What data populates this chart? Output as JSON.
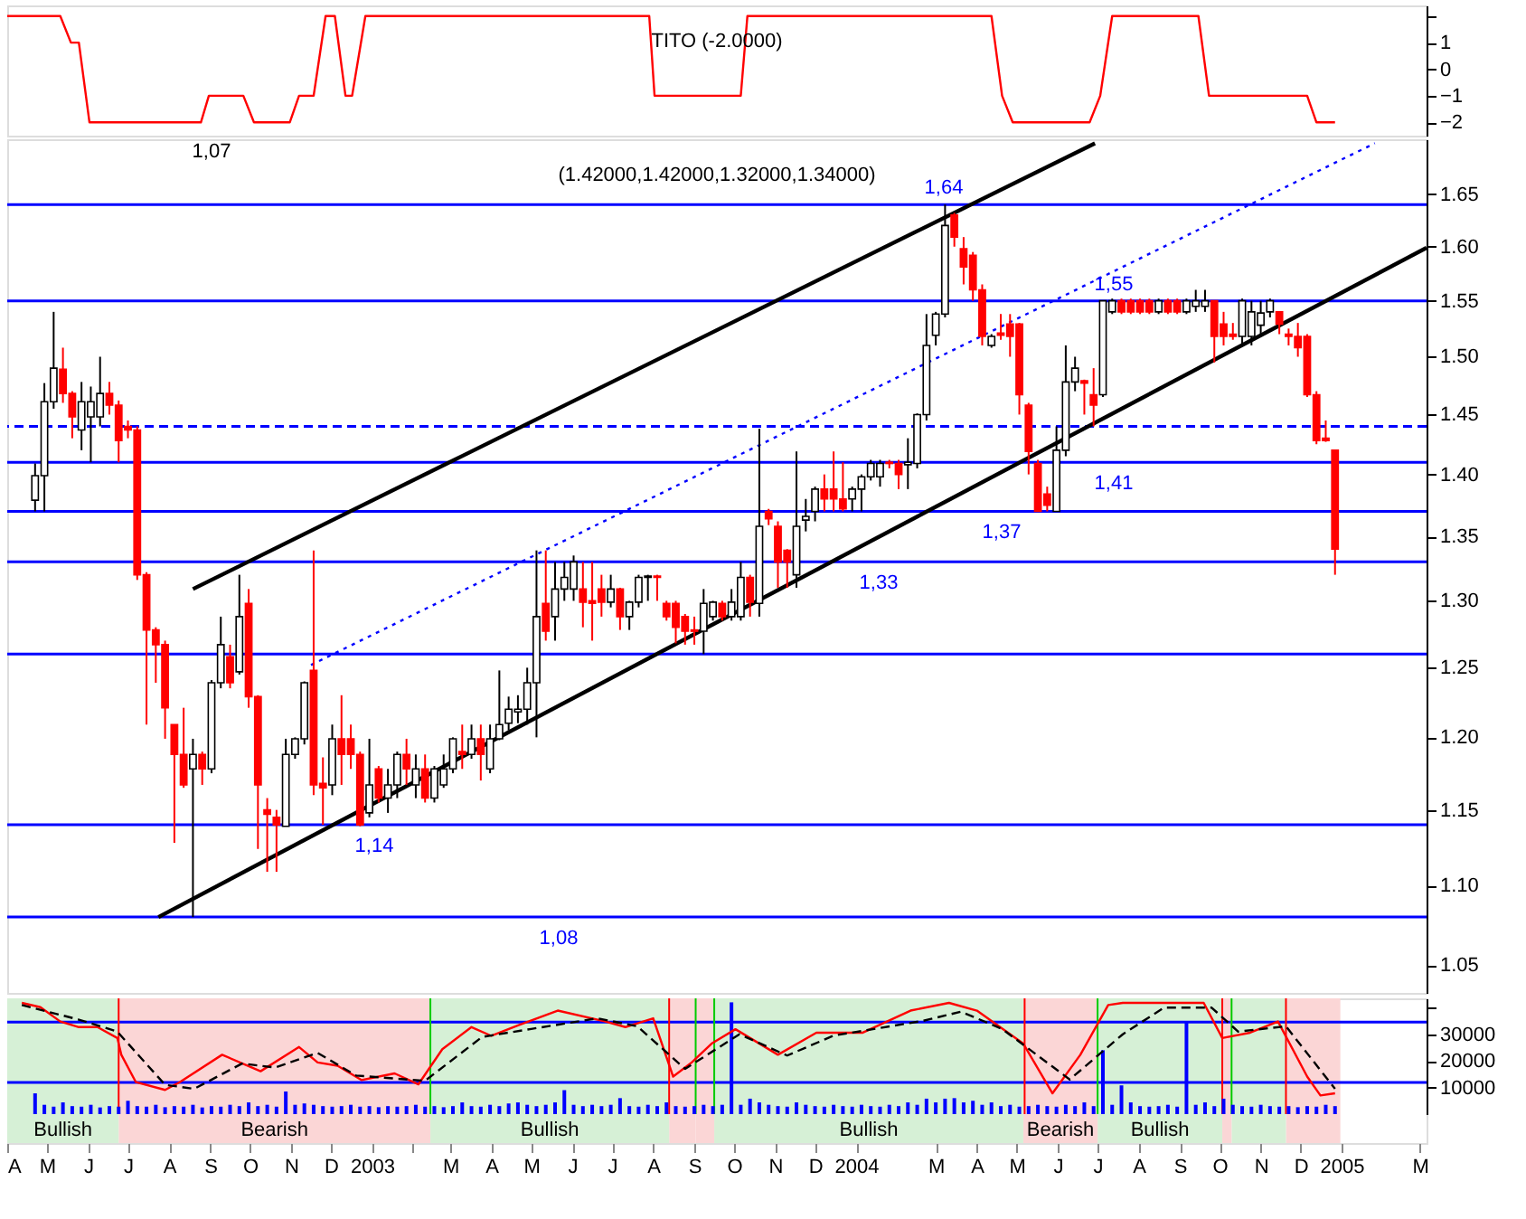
{
  "chart_data": [
    {
      "type": "line",
      "title": "TITO (-2.0000)",
      "series": [
        {
          "color": "#ff0000",
          "x": [
            "2002-04-01",
            "2002-05-11",
            "2002-05-19",
            "2002-05-25",
            "2002-06-02",
            "2002-08-25",
            "2002-08-31",
            "2002-09-26",
            "2002-10-04",
            "2002-10-31",
            "2002-11-07",
            "2002-11-18",
            "2002-11-27",
            "2002-12-04",
            "2002-12-12",
            "2002-12-17",
            "2002-12-27",
            "2003-07-29",
            "2003-08-02",
            "2003-10-06",
            "2003-10-11",
            "2004-04-12",
            "2004-04-20",
            "2004-04-28",
            "2004-06-25",
            "2004-07-03",
            "2004-07-12",
            "2004-09-15",
            "2004-09-23",
            "2004-12-06",
            "2004-12-13",
            "2004-12-27"
          ],
          "values": [
            2,
            2,
            1,
            1,
            -2,
            -2,
            -1,
            -1,
            -2,
            -2,
            -1,
            -1,
            2,
            2,
            -1,
            -1,
            2,
            2,
            -1,
            -1,
            2,
            2,
            -1,
            -2,
            -2,
            -1,
            2,
            2,
            -1,
            -1,
            -2,
            -2
          ]
        }
      ],
      "xlim": [
        "2002-04-01",
        "2005-03-06"
      ],
      "ylim": [
        -2.5,
        2.4
      ],
      "yticks": [
        {
          "value": 2,
          "label": null
        },
        1,
        0,
        -1,
        -2
      ],
      "tick_labels": "y"
    },
    {
      "type": "candlestick",
      "title": "(1.42000,1.42000,1.32000,1.34000)",
      "colors": [
        "#ffffff",
        "#ffffff",
        "#ffffff",
        "#ff0000",
        "#ff0000",
        "#ffffff",
        "#ffffff",
        "#ffffff",
        "#ff0000",
        "#ff0000",
        "#ff0000",
        "#ff0000",
        "#ff0000",
        "#ff0000",
        "#ff0000",
        "#ff0000",
        "#ff0000",
        "#ffffff",
        "#ff0000",
        "#ffffff",
        "#ffffff",
        "#ff0000",
        "#ffffff",
        "#ff0000",
        "#ff0000",
        "#ff0000",
        "#ff0000",
        "#ffffff",
        "#ffffff",
        "#ffffff",
        "#ff0000",
        "#ff0000",
        "#ffffff",
        "#ff0000",
        "#ff0000",
        "#ff0000",
        "#ffffff",
        "#ff0000",
        "#ffffff",
        "#ffffff",
        "#ff0000",
        "#ffffff",
        "#ff0000",
        "#ffffff",
        "#ffffff",
        "#ffffff",
        "#ff0000",
        "#ffffff",
        "#ff0000",
        "#ffffff",
        "#ffffff",
        "#ffffff",
        "#ffffff",
        "#ffffff",
        "#ffffff",
        "#ff0000",
        "#ffffff",
        "#ffffff",
        "#ffffff",
        "#ff0000",
        "#ff0000",
        "#ff0000",
        "#ffffff",
        "#ff0000",
        "#ffffff",
        "#ffffff",
        "#ffffff",
        "#ff0000",
        "#ff0000",
        "#ff0000",
        "#ff0000",
        "#ff0000",
        "#ffffff",
        "#ffffff",
        "#ff0000",
        "#ffffff",
        "#ffffff",
        "#ff0000",
        "#ffffff",
        "#ff0000",
        "#ff0000",
        "#ff0000",
        "#ffffff",
        "#ffffff",
        "#ffffff",
        "#ff0000",
        "#ff0000",
        "#ff0000",
        "#ffffff",
        "#ffffff",
        "#ffffff",
        "#ffffff",
        "#ff0000",
        "#ff0000",
        "#ffffff",
        "#ffffff",
        "#ffffff",
        "#ffffff",
        "#ffffff",
        "#ff0000",
        "#ff0000",
        "#ff0000",
        "#ff0000",
        "#ffffff",
        "#ff0000",
        "#ff0000",
        "#ff0000",
        "#ff0000",
        "#ff0000",
        "#ff0000",
        "#ffffff",
        "#ffffff",
        "#ffffff",
        "#ff0000",
        "#ff0000",
        "#ffffff",
        "#ffffff",
        "#ff0000",
        "#ff0000",
        "#ff0000",
        "#ff0000",
        "#ffffff",
        "#ff0000",
        "#ff0000",
        "#ffffff",
        "#ffffff",
        "#ffffff",
        "#ff0000",
        "#ff0000",
        "#ff0000",
        "#ffffff",
        "#ffffff",
        "#ffffff",
        "#ffffff",
        "#ff0000",
        "#ff0000",
        "#ff0000",
        "#ff0000",
        "#ff0000",
        "#ff0000",
        "#ff0000"
      ],
      "x": [
        "2002-04-22",
        "2002-04-29",
        "2002-05-06",
        "2002-05-13",
        "2002-05-20",
        "2002-05-27",
        "2002-06-03",
        "2002-06-10",
        "2002-06-17",
        "2002-06-24",
        "2002-07-01",
        "2002-07-08",
        "2002-07-15",
        "2002-07-22",
        "2002-07-29",
        "2002-08-05",
        "2002-08-12",
        "2002-08-19",
        "2002-08-26",
        "2002-09-02",
        "2002-09-09",
        "2002-09-16",
        "2002-09-23",
        "2002-09-30",
        "2002-10-07",
        "2002-10-14",
        "2002-10-21",
        "2002-10-28",
        "2002-11-04",
        "2002-11-11",
        "2002-11-18",
        "2002-11-25",
        "2002-12-02",
        "2002-12-09",
        "2002-12-16",
        "2002-12-23",
        "2002-12-30",
        "2003-01-06",
        "2003-01-13",
        "2003-01-20",
        "2003-01-27",
        "2003-02-03",
        "2003-02-10",
        "2003-02-17",
        "2003-02-24",
        "2003-03-03",
        "2003-03-10",
        "2003-03-17",
        "2003-03-24",
        "2003-03-31",
        "2003-04-07",
        "2003-04-14",
        "2003-04-21",
        "2003-04-28",
        "2003-05-05",
        "2003-05-12",
        "2003-05-19",
        "2003-05-26",
        "2003-06-02",
        "2003-06-09",
        "2003-06-16",
        "2003-06-23",
        "2003-06-30",
        "2003-07-07",
        "2003-07-14",
        "2003-07-21",
        "2003-07-28",
        "2003-08-04",
        "2003-08-11",
        "2003-08-18",
        "2003-08-25",
        "2003-09-01",
        "2003-09-08",
        "2003-09-15",
        "2003-09-22",
        "2003-09-29",
        "2003-10-06",
        "2003-10-13",
        "2003-10-20",
        "2003-10-27",
        "2003-11-03",
        "2003-11-10",
        "2003-11-17",
        "2003-11-24",
        "2003-12-01",
        "2003-12-08",
        "2003-12-15",
        "2003-12-22",
        "2003-12-29",
        "2004-01-05",
        "2004-01-12",
        "2004-01-19",
        "2004-01-26",
        "2004-02-02",
        "2004-02-09",
        "2004-02-16",
        "2004-02-23",
        "2004-03-01",
        "2004-03-08",
        "2004-03-15",
        "2004-03-22",
        "2004-03-29",
        "2004-04-05",
        "2004-04-12",
        "2004-04-19",
        "2004-04-26",
        "2004-05-03",
        "2004-05-10",
        "2004-05-17",
        "2004-05-24",
        "2004-05-31",
        "2004-06-07",
        "2004-06-14",
        "2004-06-21",
        "2004-06-28",
        "2004-07-05",
        "2004-07-12",
        "2004-07-19",
        "2004-07-26",
        "2004-08-02",
        "2004-08-09",
        "2004-08-16",
        "2004-08-23",
        "2004-08-30",
        "2004-09-06",
        "2004-09-13",
        "2004-09-20",
        "2004-09-27",
        "2004-10-04",
        "2004-10-11",
        "2004-10-18",
        "2004-10-25",
        "2004-11-01",
        "2004-11-08",
        "2004-11-15",
        "2004-11-22",
        "2004-11-29",
        "2004-12-06",
        "2004-12-13",
        "2004-12-20",
        "2004-12-27"
      ],
      "ohlc": [
        [
          1.379,
          1.409,
          1.37,
          1.399
        ],
        [
          1.399,
          1.477,
          1.37,
          1.461
        ],
        [
          1.461,
          1.54,
          1.455,
          1.49
        ],
        [
          1.489,
          1.508,
          1.46,
          1.468
        ],
        [
          1.468,
          1.47,
          1.43,
          1.448
        ],
        [
          1.437,
          1.478,
          1.42,
          1.461
        ],
        [
          1.448,
          1.474,
          1.41,
          1.461
        ],
        [
          1.448,
          1.5,
          1.44,
          1.468
        ],
        [
          1.468,
          1.478,
          1.45,
          1.458
        ],
        [
          1.458,
          1.462,
          1.41,
          1.428
        ],
        [
          1.44,
          1.445,
          1.43,
          1.437
        ],
        [
          1.437,
          1.44,
          1.316,
          1.32
        ],
        [
          1.32,
          1.322,
          1.209,
          1.278
        ],
        [
          1.278,
          1.28,
          1.239,
          1.267
        ],
        [
          1.267,
          1.27,
          1.199,
          1.221
        ],
        [
          1.209,
          1.209,
          1.128,
          1.188
        ],
        [
          1.188,
          1.221,
          1.165,
          1.167
        ],
        [
          1.178,
          1.199,
          1.08,
          1.188
        ],
        [
          1.188,
          1.19,
          1.167,
          1.178
        ],
        [
          1.178,
          1.241,
          1.175,
          1.239
        ],
        [
          1.239,
          1.288,
          1.235,
          1.267
        ],
        [
          1.258,
          1.267,
          1.235,
          1.239
        ],
        [
          1.247,
          1.32,
          1.245,
          1.288
        ],
        [
          1.298,
          1.309,
          1.221,
          1.229
        ],
        [
          1.229,
          1.23,
          1.124,
          1.167
        ],
        [
          1.15,
          1.158,
          1.109,
          1.147
        ],
        [
          1.145,
          1.15,
          1.109,
          1.14
        ],
        [
          1.139,
          1.199,
          1.139,
          1.188
        ],
        [
          1.188,
          1.2,
          1.185,
          1.199
        ],
        [
          1.199,
          1.24,
          1.195,
          1.239
        ],
        [
          1.248,
          1.339,
          1.16,
          1.167
        ],
        [
          1.168,
          1.186,
          1.14,
          1.165
        ],
        [
          1.167,
          1.209,
          1.16,
          1.199
        ],
        [
          1.199,
          1.23,
          1.167,
          1.188
        ],
        [
          1.199,
          1.209,
          1.178,
          1.188
        ],
        [
          1.188,
          1.19,
          1.139,
          1.14
        ],
        [
          1.148,
          1.199,
          1.145,
          1.167
        ],
        [
          1.178,
          1.18,
          1.155,
          1.158
        ],
        [
          1.158,
          1.178,
          1.148,
          1.167
        ],
        [
          1.167,
          1.19,
          1.158,
          1.188
        ],
        [
          1.188,
          1.199,
          1.167,
          1.178
        ],
        [
          1.167,
          1.188,
          1.158,
          1.178
        ],
        [
          1.178,
          1.188,
          1.155,
          1.158
        ],
        [
          1.158,
          1.18,
          1.155,
          1.178
        ],
        [
          1.167,
          1.188,
          1.165,
          1.178
        ],
        [
          1.178,
          1.2,
          1.175,
          1.199
        ],
        [
          1.19,
          1.209,
          1.178,
          1.188
        ],
        [
          1.188,
          1.209,
          1.185,
          1.199
        ],
        [
          1.199,
          1.209,
          1.17,
          1.188
        ],
        [
          1.178,
          1.209,
          1.175,
          1.199
        ],
        [
          1.199,
          1.248,
          1.198,
          1.209
        ],
        [
          1.21,
          1.229,
          1.205,
          1.22
        ],
        [
          1.218,
          1.23,
          1.21,
          1.22
        ],
        [
          1.22,
          1.25,
          1.209,
          1.239
        ],
        [
          1.239,
          1.339,
          1.2,
          1.288
        ],
        [
          1.298,
          1.339,
          1.27,
          1.277
        ],
        [
          1.288,
          1.33,
          1.27,
          1.309
        ],
        [
          1.309,
          1.33,
          1.3,
          1.318
        ],
        [
          1.309,
          1.335,
          1.3,
          1.33
        ],
        [
          1.309,
          1.33,
          1.28,
          1.299
        ],
        [
          1.3,
          1.33,
          1.27,
          1.298
        ],
        [
          1.309,
          1.32,
          1.288,
          1.299
        ],
        [
          1.299,
          1.32,
          1.295,
          1.309
        ],
        [
          1.309,
          1.31,
          1.278,
          1.288
        ],
        [
          1.288,
          1.3,
          1.278,
          1.299
        ],
        [
          1.299,
          1.32,
          1.295,
          1.318
        ],
        [
          1.318,
          1.32,
          1.3,
          1.319
        ],
        [
          1.319,
          1.32,
          1.3,
          1.318
        ],
        [
          1.298,
          1.3,
          1.285,
          1.288
        ],
        [
          1.298,
          1.3,
          1.268,
          1.28
        ],
        [
          1.288,
          1.29,
          1.267,
          1.277
        ],
        [
          1.278,
          1.288,
          1.267,
          1.277
        ],
        [
          1.277,
          1.309,
          1.26,
          1.298
        ],
        [
          1.288,
          1.3,
          1.285,
          1.299
        ],
        [
          1.298,
          1.3,
          1.285,
          1.288
        ],
        [
          1.288,
          1.309,
          1.285,
          1.299
        ],
        [
          1.288,
          1.33,
          1.285,
          1.318
        ],
        [
          1.318,
          1.32,
          1.288,
          1.299
        ],
        [
          1.298,
          1.438,
          1.288,
          1.358
        ],
        [
          1.37,
          1.372,
          1.359,
          1.364
        ],
        [
          1.358,
          1.362,
          1.31,
          1.33
        ],
        [
          1.339,
          1.34,
          1.31,
          1.33
        ],
        [
          1.32,
          1.419,
          1.31,
          1.358
        ],
        [
          1.363,
          1.38,
          1.354,
          1.366
        ],
        [
          1.37,
          1.39,
          1.362,
          1.388
        ],
        [
          1.388,
          1.4,
          1.37,
          1.38
        ],
        [
          1.388,
          1.419,
          1.37,
          1.38
        ],
        [
          1.38,
          1.41,
          1.37,
          1.372
        ],
        [
          1.38,
          1.39,
          1.37,
          1.388
        ],
        [
          1.388,
          1.4,
          1.37,
          1.398
        ],
        [
          1.398,
          1.412,
          1.395,
          1.409
        ],
        [
          1.398,
          1.412,
          1.39,
          1.409
        ],
        [
          1.41,
          1.412,
          1.405,
          1.409
        ],
        [
          1.409,
          1.412,
          1.388,
          1.4
        ],
        [
          1.408,
          1.43,
          1.388,
          1.41
        ],
        [
          1.409,
          1.451,
          1.405,
          1.45
        ],
        [
          1.45,
          1.538,
          1.445,
          1.51
        ],
        [
          1.519,
          1.54,
          1.51,
          1.538
        ],
        [
          1.538,
          1.64,
          1.535,
          1.62
        ],
        [
          1.63,
          1.632,
          1.6,
          1.609
        ],
        [
          1.598,
          1.609,
          1.565,
          1.581
        ],
        [
          1.592,
          1.595,
          1.55,
          1.56
        ],
        [
          1.56,
          1.565,
          1.51,
          1.518
        ],
        [
          1.51,
          1.52,
          1.508,
          1.518
        ],
        [
          1.521,
          1.538,
          1.515,
          1.519
        ],
        [
          1.529,
          1.538,
          1.5,
          1.518
        ],
        [
          1.529,
          1.53,
          1.45,
          1.467
        ],
        [
          1.458,
          1.46,
          1.4,
          1.419
        ],
        [
          1.409,
          1.412,
          1.37,
          1.37
        ],
        [
          1.384,
          1.39,
          1.37,
          1.375
        ],
        [
          1.37,
          1.44,
          1.37,
          1.42
        ],
        [
          1.42,
          1.51,
          1.415,
          1.478
        ],
        [
          1.478,
          1.5,
          1.47,
          1.49
        ],
        [
          1.479,
          1.48,
          1.45,
          1.477
        ],
        [
          1.467,
          1.49,
          1.44,
          1.458
        ],
        [
          1.467,
          1.55,
          1.465,
          1.55
        ],
        [
          1.54,
          1.552,
          1.538,
          1.55
        ],
        [
          1.55,
          1.552,
          1.538,
          1.54
        ],
        [
          1.55,
          1.552,
          1.538,
          1.54
        ],
        [
          1.55,
          1.552,
          1.538,
          1.54
        ],
        [
          1.55,
          1.552,
          1.538,
          1.54
        ],
        [
          1.54,
          1.552,
          1.538,
          1.55
        ],
        [
          1.55,
          1.552,
          1.538,
          1.54
        ],
        [
          1.55,
          1.552,
          1.538,
          1.54
        ],
        [
          1.54,
          1.552,
          1.538,
          1.55
        ],
        [
          1.545,
          1.56,
          1.54,
          1.55
        ],
        [
          1.545,
          1.56,
          1.54,
          1.55
        ],
        [
          1.55,
          1.55,
          1.495,
          1.518
        ],
        [
          1.529,
          1.54,
          1.51,
          1.518
        ],
        [
          1.52,
          1.53,
          1.515,
          1.518
        ],
        [
          1.518,
          1.552,
          1.51,
          1.55
        ],
        [
          1.518,
          1.55,
          1.51,
          1.54
        ],
        [
          1.528,
          1.55,
          1.52,
          1.539
        ],
        [
          1.54,
          1.552,
          1.535,
          1.55
        ],
        [
          1.54,
          1.54,
          1.52,
          1.529
        ],
        [
          1.52,
          1.525,
          1.51,
          1.518
        ],
        [
          1.518,
          1.53,
          1.5,
          1.508
        ],
        [
          1.518,
          1.52,
          1.465,
          1.467
        ],
        [
          1.467,
          1.47,
          1.425,
          1.428
        ],
        [
          1.43,
          1.445,
          1.427,
          1.428
        ],
        [
          1.42,
          1.42,
          1.32,
          1.34
        ]
      ],
      "series": [
        {
          "type": "line",
          "color": "#000000",
          "x": [
            "2002-08-19",
            "2004-06-29"
          ],
          "values": [
            1.309,
            1.7
          ]
        },
        {
          "type": "line",
          "color": "#000000",
          "x": [
            "2002-07-24",
            "2005-03-06"
          ],
          "values": [
            1.08,
            1.599
          ]
        },
        {
          "type": "line",
          "color": "#0000ff",
          "line_style": "dotted",
          "x": [
            "2002-11-16",
            "2005-01-26"
          ],
          "values": [
            1.252,
            1.7
          ]
        }
      ],
      "ref_lines": [
        {
          "axis": "y",
          "value": 1.64,
          "label": "1,64",
          "color": "#0000ff"
        },
        {
          "axis": "y",
          "value": 1.55,
          "label": "1,55",
          "color": "#0000ff"
        },
        {
          "axis": "y",
          "value": 1.44,
          "color": "#0000ff",
          "line_style": "dashed"
        },
        {
          "axis": "y",
          "value": 1.41,
          "label": "1,41",
          "color": "#0000ff"
        },
        {
          "axis": "y",
          "value": 1.37,
          "label": "1,37",
          "color": "#0000ff"
        },
        {
          "axis": "y",
          "value": 1.33,
          "label": "1,33",
          "color": "#0000ff"
        },
        {
          "axis": "y",
          "value": 1.26,
          "color": "#0000ff"
        },
        {
          "axis": "y",
          "value": 1.14,
          "label": "1,14",
          "color": "#0000ff"
        },
        {
          "axis": "y",
          "value": 1.08,
          "label": "1,08",
          "color": "#0000ff"
        }
      ],
      "annotations": [
        "1,07"
      ],
      "log": "y",
      "xlim": [
        "2002-04-01",
        "2005-03-06"
      ],
      "ylim": [
        1.033,
        1.704
      ],
      "yticks": [
        1.05,
        {
          "value": 1.1,
          "label": "1.10"
        },
        1.15,
        {
          "value": 1.2,
          "label": "1.20"
        },
        1.25,
        {
          "value": 1.3,
          "label": "1.30"
        },
        1.35,
        {
          "value": 1.4,
          "label": "1.40"
        },
        1.45,
        {
          "value": 1.5,
          "label": "1.50"
        },
        1.55,
        {
          "value": 1.6,
          "label": "1.60"
        },
        1.65
      ],
      "tick_labels": "y"
    },
    {
      "type": "bar",
      "color": "#0000ff",
      "x": [
        "2002-04-22",
        "2002-04-29",
        "2002-05-06",
        "2002-05-13",
        "2002-05-20",
        "2002-05-27",
        "2002-06-03",
        "2002-06-10",
        "2002-06-17",
        "2002-06-24",
        "2002-07-01",
        "2002-07-08",
        "2002-07-15",
        "2002-07-22",
        "2002-07-29",
        "2002-08-05",
        "2002-08-12",
        "2002-08-19",
        "2002-08-26",
        "2002-09-02",
        "2002-09-09",
        "2002-09-16",
        "2002-09-23",
        "2002-09-30",
        "2002-10-07",
        "2002-10-14",
        "2002-10-21",
        "2002-10-28",
        "2002-11-04",
        "2002-11-11",
        "2002-11-18",
        "2002-11-25",
        "2002-12-02",
        "2002-12-09",
        "2002-12-16",
        "2002-12-23",
        "2002-12-30",
        "2003-01-06",
        "2003-01-13",
        "2003-01-20",
        "2003-01-27",
        "2003-02-03",
        "2003-02-10",
        "2003-02-17",
        "2003-02-24",
        "2003-03-03",
        "2003-03-10",
        "2003-03-17",
        "2003-03-24",
        "2003-03-31",
        "2003-04-07",
        "2003-04-14",
        "2003-04-21",
        "2003-04-28",
        "2003-05-05",
        "2003-05-12",
        "2003-05-19",
        "2003-05-26",
        "2003-06-02",
        "2003-06-09",
        "2003-06-16",
        "2003-06-23",
        "2003-06-30",
        "2003-07-07",
        "2003-07-14",
        "2003-07-21",
        "2003-07-28",
        "2003-08-04",
        "2003-08-11",
        "2003-08-18",
        "2003-08-25",
        "2003-09-01",
        "2003-09-08",
        "2003-09-15",
        "2003-09-22",
        "2003-09-29",
        "2003-10-06",
        "2003-10-13",
        "2003-10-20",
        "2003-10-27",
        "2003-11-03",
        "2003-11-10",
        "2003-11-17",
        "2003-11-24",
        "2003-12-01",
        "2003-12-08",
        "2003-12-15",
        "2003-12-22",
        "2003-12-29",
        "2004-01-05",
        "2004-01-12",
        "2004-01-19",
        "2004-01-26",
        "2004-02-02",
        "2004-02-09",
        "2004-02-16",
        "2004-02-23",
        "2004-03-01",
        "2004-03-08",
        "2004-03-15",
        "2004-03-22",
        "2004-03-29",
        "2004-04-05",
        "2004-04-12",
        "2004-04-19",
        "2004-04-26",
        "2004-05-03",
        "2004-05-10",
        "2004-05-17",
        "2004-05-24",
        "2004-05-31",
        "2004-06-07",
        "2004-06-14",
        "2004-06-21",
        "2004-06-28",
        "2004-07-05",
        "2004-07-12",
        "2004-07-19",
        "2004-07-26",
        "2004-08-02",
        "2004-08-09",
        "2004-08-16",
        "2004-08-23",
        "2004-08-30",
        "2004-09-06",
        "2004-09-13",
        "2004-09-20",
        "2004-09-27",
        "2004-10-04",
        "2004-10-11",
        "2004-10-18",
        "2004-10-25",
        "2004-11-01",
        "2004-11-08",
        "2004-11-15",
        "2004-11-22",
        "2004-11-29",
        "2004-12-06",
        "2004-12-13",
        "2004-12-20",
        "2004-12-27"
      ],
      "values": [
        7800,
        3500,
        2800,
        4400,
        3000,
        2800,
        3500,
        2500,
        3000,
        2800,
        5000,
        3000,
        2800,
        3500,
        2600,
        3000,
        2800,
        3500,
        2500,
        3000,
        2800,
        3500,
        3000,
        4400,
        3000,
        3500,
        2800,
        8500,
        3500,
        4000,
        3500,
        3000,
        2800,
        3000,
        3500,
        2800,
        3000,
        2600,
        3000,
        2800,
        3000,
        3500,
        2800,
        3000,
        2600,
        3000,
        4400,
        3000,
        2800,
        3500,
        3000,
        4000,
        4400,
        3500,
        3000,
        3500,
        4400,
        9000,
        3500,
        3000,
        3500,
        3000,
        3500,
        6000,
        3000,
        2800,
        3500,
        3000,
        4400,
        3000,
        2800,
        3000,
        3500,
        3000,
        3500,
        42000,
        3500,
        5800,
        4400,
        3500,
        3000,
        2800,
        4400,
        3500,
        3000,
        2800,
        3500,
        3000,
        2800,
        3500,
        3000,
        2800,
        3500,
        3000,
        4400,
        3500,
        5800,
        4400,
        5800,
        6000,
        4400,
        5000,
        3500,
        4400,
        3000,
        3500,
        2800,
        3000,
        3500,
        3000,
        2800,
        3500,
        3000,
        4400,
        3000,
        24000,
        3500,
        10800,
        4400,
        3000,
        2800,
        3000,
        3500,
        2800,
        34600,
        3500,
        4400,
        3000,
        5800,
        3500,
        3000,
        2800,
        3500,
        3000,
        2800,
        3000,
        2600,
        3000,
        2800,
        3500,
        3000
      ],
      "series": [
        {
          "type": "line",
          "color": "#ff0000",
          "x": [
            "2002-04-12",
            "2002-04-26",
            "2002-05-11",
            "2002-05-25",
            "2002-06-08",
            "2002-06-23",
            "2002-06-26",
            "2002-07-07",
            "2002-07-29",
            "2002-08-09",
            "2002-09-10",
            "2002-10-09",
            "2002-11-07",
            "2002-11-21",
            "2002-12-06",
            "2002-12-24",
            "2003-01-18",
            "2003-02-05",
            "2003-02-23",
            "2003-03-17",
            "2003-04-01",
            "2003-04-22",
            "2003-05-21",
            "2003-06-26",
            "2003-07-11",
            "2003-08-01",
            "2003-08-16",
            "2003-08-30",
            "2003-09-14",
            "2003-10-02",
            "2003-11-03",
            "2003-12-02",
            "2004-01-06",
            "2004-02-11",
            "2004-03-11",
            "2004-04-01",
            "2004-05-06",
            "2004-05-28",
            "2004-06-18",
            "2004-07-09",
            "2004-07-20",
            "2004-09-19",
            "2004-10-03",
            "2004-10-24",
            "2004-11-14",
            "2004-12-06",
            "2004-12-16",
            "2004-12-27"
          ],
          "values": [
            41800,
            40200,
            34800,
            32700,
            32700,
            28600,
            22300,
            12000,
            9100,
            12000,
            22300,
            16100,
            25200,
            19400,
            18200,
            12800,
            15300,
            11200,
            24400,
            32700,
            29400,
            33500,
            38900,
            34800,
            32700,
            36000,
            14100,
            19400,
            26500,
            31900,
            22300,
            30600,
            30600,
            38900,
            41800,
            38900,
            26500,
            7800,
            22300,
            41000,
            41800,
            41800,
            28600,
            30600,
            34800,
            14100,
            7000,
            7800
          ]
        },
        {
          "type": "line",
          "color": "#000000",
          "line_style": "dashed",
          "x": [
            "2002-04-12",
            "2002-05-25",
            "2002-06-23",
            "2002-07-29",
            "2002-08-20",
            "2002-09-25",
            "2002-10-20",
            "2002-11-21",
            "2002-12-20",
            "2003-02-10",
            "2003-03-25",
            "2003-05-01",
            "2003-06-20",
            "2003-07-20",
            "2003-08-25",
            "2003-10-05",
            "2003-11-10",
            "2003-12-15",
            "2004-02-20",
            "2004-03-20",
            "2004-04-20",
            "2004-06-10",
            "2004-07-20",
            "2004-08-20",
            "2004-09-25",
            "2004-10-15",
            "2004-11-20",
            "2004-12-27"
          ],
          "values": [
            41000,
            35500,
            31000,
            11000,
            9500,
            19000,
            17500,
            23000,
            14500,
            12500,
            29000,
            32000,
            36000,
            33000,
            17000,
            30000,
            22000,
            29500,
            35000,
            38500,
            32000,
            13000,
            30000,
            40000,
            40000,
            31000,
            33000,
            9500
          ]
        }
      ],
      "ref_lines": [
        {
          "axis": "y",
          "value": 34600,
          "color": "#0000ff"
        },
        {
          "axis": "y",
          "value": 11900,
          "color": "#0000ff"
        },
        {
          "axis": "x",
          "value": "2002-06-24",
          "color": "#ff0000"
        },
        {
          "axis": "x",
          "value": "2003-08-13",
          "color": "#ff0000"
        },
        {
          "axis": "x",
          "value": "2004-05-07",
          "color": "#ff0000"
        },
        {
          "axis": "x",
          "value": "2004-10-03",
          "color": "#ff0000"
        },
        {
          "axis": "x",
          "value": "2004-11-20",
          "color": "#ff0000"
        },
        {
          "axis": "x",
          "value": "2003-02-14",
          "color": "#00cc00"
        },
        {
          "axis": "x",
          "value": "2003-09-02",
          "color": "#00cc00"
        },
        {
          "axis": "x",
          "value": "2003-09-16",
          "color": "#00cc00"
        },
        {
          "axis": "x",
          "value": "2004-07-01",
          "color": "#00cc00"
        },
        {
          "axis": "x",
          "value": "2004-10-10",
          "color": "#00cc00"
        }
      ],
      "bands": [
        {
          "axis": "x",
          "from": "2002-04-01",
          "to": "2002-06-24",
          "label": "Bullish",
          "color": "#d6f0d6"
        },
        {
          "axis": "x",
          "from": "2002-06-24",
          "to": "2003-02-14",
          "label": "Bearish",
          "color": "#fbd6d6"
        },
        {
          "axis": "x",
          "from": "2003-02-14",
          "to": "2003-08-13",
          "label": "Bullish",
          "color": "#d6f0d6"
        },
        {
          "axis": "x",
          "from": "2003-08-13",
          "to": "2003-09-02",
          "color": "#fbd6d6"
        },
        {
          "axis": "x",
          "from": "2003-09-02",
          "to": "2003-09-16",
          "color": "#fbd6d6"
        },
        {
          "axis": "x",
          "from": "2003-09-16",
          "to": "2004-05-06",
          "label": "Bullish",
          "color": "#d6f0d6"
        },
        {
          "axis": "x",
          "from": "2004-05-06",
          "to": "2004-07-01",
          "label": "Bearish",
          "color": "#fbd6d6"
        },
        {
          "axis": "x",
          "from": "2004-07-01",
          "to": "2004-10-03",
          "label": "Bullish",
          "color": "#d6f0d6"
        },
        {
          "axis": "x",
          "from": "2004-10-03",
          "to": "2004-10-10",
          "color": "#fbd6d6"
        },
        {
          "axis": "x",
          "from": "2004-10-10",
          "to": "2004-11-20",
          "color": "#d6f0d6"
        },
        {
          "axis": "x",
          "from": "2004-11-20",
          "to": "2004-12-31",
          "color": "#fbd6d6"
        }
      ],
      "xlim": [
        "2002-04-01",
        "2005-03-06"
      ],
      "xticks": [
        {
          "value": "2002-04-01",
          "label": "A"
        },
        {
          "value": "2002-05-01",
          "label": "M"
        },
        {
          "value": "2002-06-01",
          "label": "J"
        },
        {
          "value": "2002-07-01",
          "label": "J"
        },
        {
          "value": "2002-08-01",
          "label": "A"
        },
        {
          "value": "2002-09-01",
          "label": "S"
        },
        {
          "value": "2002-10-01",
          "label": "O"
        },
        {
          "value": "2002-11-01",
          "label": "N"
        },
        {
          "value": "2002-12-01",
          "label": "D"
        },
        {
          "value": "2003-01-01",
          "label": "2003"
        },
        {
          "value": "2003-02-01",
          "label": null
        },
        {
          "value": "2003-03-01",
          "label": "M"
        },
        {
          "value": "2003-04-01",
          "label": "A"
        },
        {
          "value": "2003-05-01",
          "label": "M"
        },
        {
          "value": "2003-06-01",
          "label": "J"
        },
        {
          "value": "2003-07-01",
          "label": "J"
        },
        {
          "value": "2003-08-01",
          "label": "A"
        },
        {
          "value": "2003-09-01",
          "label": "S"
        },
        {
          "value": "2003-10-01",
          "label": "O"
        },
        {
          "value": "2003-11-01",
          "label": "N"
        },
        {
          "value": "2003-12-01",
          "label": "D"
        },
        {
          "value": "2004-01-01",
          "label": "2004"
        },
        {
          "value": "2004-03-01",
          "label": "M"
        },
        {
          "value": "2004-04-01",
          "label": "A"
        },
        {
          "value": "2004-05-01",
          "label": "M"
        },
        {
          "value": "2004-06-01",
          "label": "J"
        },
        {
          "value": "2004-07-01",
          "label": "J"
        },
        {
          "value": "2004-08-01",
          "label": "A"
        },
        {
          "value": "2004-09-01",
          "label": "S"
        },
        {
          "value": "2004-10-01",
          "label": "O"
        },
        {
          "value": "2004-11-01",
          "label": "N"
        },
        {
          "value": "2004-12-01",
          "label": "D"
        },
        {
          "value": "2005-01-01",
          "label": "2005"
        },
        {
          "value": "2005-03-01",
          "label": "M"
        }
      ],
      "ylim": [
        0,
        43500
      ],
      "yticks": [
        {
          "value": 40000,
          "label": null
        },
        30000,
        20000,
        10000
      ]
    }
  ]
}
